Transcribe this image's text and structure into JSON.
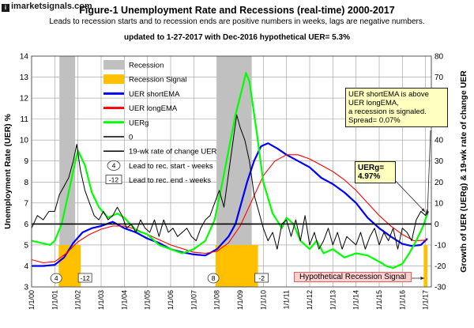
{
  "brand": "imarketsignals.com",
  "title": "Figure-1     Unemployment Rate and Recessions (real-time) 2000-2017",
  "subtitle": "Leads to recession starts and to recession ends are positive numbers in weeks, lags are negative numbers.",
  "update_note": "updated to 1-27-2017 with Dec-2016 hypothetical UER= 5.3%",
  "callouts": {
    "spread_lines": [
      "UER shortEMA  is above",
      "UER longEMA,",
      "a recession is signaled.",
      "Spread= 0.07%"
    ],
    "uerg_lines": [
      "UERg=",
      "4.97%"
    ],
    "hypothetical": "Hypothetical Recession Signal"
  },
  "chart_data": {
    "type": "line",
    "title": "Unemployment Rate and Recessions (real-time) 2000-2017",
    "ylabel_left": "Unemployment Rate (UER) %",
    "ylabel_right": "Growth of UER (UERg) & 19-wk rate of change UER",
    "ylim_left": [
      3,
      14
    ],
    "ylim_right": [
      -30,
      80
    ],
    "yticks_left": [
      3,
      4,
      5,
      6,
      7,
      8,
      9,
      10,
      11,
      12,
      13,
      14
    ],
    "yticks_right": [
      -30,
      -20,
      -10,
      0,
      10,
      20,
      30,
      40,
      50,
      60,
      70,
      80
    ],
    "xlim": [
      2000.0,
      2017.25
    ],
    "xtick_labels": [
      "1/1/00",
      "1/1/01",
      "1/1/02",
      "1/1/03",
      "1/1/04",
      "1/1/05",
      "1/1/06",
      "1/1/07",
      "1/1/08",
      "1/1/09",
      "1/1/10",
      "1/1/11",
      "1/1/12",
      "1/1/13",
      "1/1/14",
      "1/1/15",
      "1/1/16",
      "1/1/17"
    ],
    "grid": true,
    "legend_position": "top-left",
    "legend": [
      {
        "label": "Recession",
        "kind": "box",
        "color": "#c0c0c0"
      },
      {
        "label": "Recession Signal",
        "kind": "box",
        "color": "#ffc000"
      },
      {
        "label": "UER shortEMA",
        "kind": "line",
        "color": "#0000ff"
      },
      {
        "label": "UER longEMA",
        "kind": "line",
        "color": "#ff0000"
      },
      {
        "label": "UERg",
        "kind": "line",
        "color": "#00ff00"
      },
      {
        "label": "0",
        "kind": "line",
        "color": "#000000"
      },
      {
        "label": "19-wk rate of change UER",
        "kind": "line",
        "color": "#000000"
      },
      {
        "label": "Lead to rec. start - weeks",
        "kind": "oval",
        "marker": "4"
      },
      {
        "label": "Lead to rec. end - weeks",
        "kind": "rect",
        "marker": "-12"
      }
    ],
    "recessions": [
      [
        2001.2,
        2001.88
      ],
      [
        2007.98,
        2009.5
      ]
    ],
    "recession_signals": [
      [
        2001.17,
        2002.12
      ],
      [
        2007.94,
        2009.77
      ],
      [
        2016.92,
        2017.08
      ]
    ],
    "recession_signal_level_right": -10,
    "start_markers": [
      {
        "x": 2001.2,
        "label": "4"
      },
      {
        "x": 2007.98,
        "label": "8"
      }
    ],
    "end_markers": [
      {
        "x": 2001.88,
        "label": "-12"
      },
      {
        "x": 2009.5,
        "label": "-2"
      }
    ],
    "series": [
      {
        "name": "UER shortEMA",
        "axis": "left",
        "color": "#0000ff",
        "width": 2.2,
        "x": [
          2000.0,
          2000.5,
          2001.0,
          2001.4,
          2001.8,
          2002.2,
          2002.6,
          2003.0,
          2003.5,
          2004.0,
          2004.5,
          2005.0,
          2005.5,
          2006.0,
          2006.5,
          2007.0,
          2007.5,
          2008.0,
          2008.5,
          2008.8,
          2009.0,
          2009.3,
          2009.6,
          2009.9,
          2010.2,
          2010.6,
          2011.0,
          2011.5,
          2012.0,
          2012.5,
          2013.0,
          2013.5,
          2014.0,
          2014.5,
          2015.0,
          2015.5,
          2016.0,
          2016.4,
          2016.8,
          2017.08
        ],
        "y": [
          4.0,
          4.0,
          4.05,
          4.4,
          5.1,
          5.6,
          5.8,
          5.9,
          6.1,
          5.8,
          5.6,
          5.3,
          5.1,
          4.8,
          4.65,
          4.55,
          4.5,
          4.8,
          5.4,
          6.0,
          6.8,
          8.0,
          9.0,
          9.7,
          9.85,
          9.6,
          9.3,
          9.0,
          8.7,
          8.2,
          7.9,
          7.5,
          7.0,
          6.3,
          5.8,
          5.4,
          5.05,
          4.95,
          5.0,
          5.3
        ]
      },
      {
        "name": "UER longEMA",
        "axis": "left",
        "color": "#ff0000",
        "width": 1.1,
        "x": [
          2000.0,
          2000.5,
          2001.0,
          2001.5,
          2002.0,
          2002.5,
          2003.0,
          2003.5,
          2004.0,
          2004.5,
          2005.0,
          2006.0,
          2007.0,
          2007.5,
          2008.0,
          2008.5,
          2009.0,
          2009.5,
          2010.0,
          2010.5,
          2011.0,
          2011.5,
          2012.0,
          2012.5,
          2013.0,
          2013.5,
          2014.0,
          2014.5,
          2015.0,
          2015.5,
          2016.0,
          2016.5,
          2017.08
        ],
        "y": [
          4.3,
          4.15,
          4.2,
          4.6,
          5.15,
          5.5,
          5.75,
          5.9,
          5.9,
          5.75,
          5.5,
          5.0,
          4.65,
          4.6,
          4.7,
          5.1,
          5.9,
          7.1,
          8.3,
          9.0,
          9.3,
          9.3,
          9.1,
          8.8,
          8.5,
          8.1,
          7.6,
          7.0,
          6.4,
          5.9,
          5.5,
          5.2,
          5.23
        ]
      },
      {
        "name": "UERg",
        "axis": "right",
        "color": "#00ff00",
        "width": 2.2,
        "x": [
          2000.0,
          2000.4,
          2000.8,
          2001.0,
          2001.3,
          2001.6,
          2001.85,
          2002.0,
          2002.3,
          2002.6,
          2002.9,
          2003.3,
          2003.7,
          2004.0,
          2004.5,
          2005.0,
          2005.5,
          2006.0,
          2006.5,
          2007.0,
          2007.5,
          2007.9,
          2008.2,
          2008.5,
          2008.8,
          2009.1,
          2009.25,
          2009.4,
          2009.7,
          2010.0,
          2010.4,
          2010.8,
          2011.0,
          2011.3,
          2011.6,
          2012.0,
          2012.3,
          2012.6,
          2013.0,
          2013.5,
          2014.0,
          2014.5,
          2015.0,
          2015.3,
          2015.6,
          2016.0,
          2016.3,
          2016.6,
          2016.9,
          2017.08
        ],
        "y": [
          -8,
          -9,
          -10,
          -8,
          0,
          15,
          28,
          35,
          28,
          15,
          8,
          3,
          5,
          3,
          -3,
          -5,
          -10,
          -12,
          -14,
          -12,
          -8,
          2,
          18,
          35,
          52,
          65,
          72,
          68,
          45,
          20,
          5,
          -2,
          3,
          0,
          -8,
          -12,
          -8,
          -14,
          -12,
          -16,
          -14,
          -15,
          -18,
          -20,
          -21,
          -19,
          -14,
          -8,
          -1,
          5
        ]
      },
      {
        "name": "19-wk rate of change UER",
        "axis": "right",
        "color": "#000000",
        "width": 1.0,
        "x": [
          2000.0,
          2000.25,
          2000.5,
          2000.75,
          2001.0,
          2001.2,
          2001.4,
          2001.6,
          2001.8,
          2001.95,
          2002.1,
          2002.3,
          2002.5,
          2002.7,
          2002.9,
          2003.1,
          2003.3,
          2003.5,
          2003.7,
          2003.9,
          2004.1,
          2004.3,
          2004.5,
          2004.7,
          2004.9,
          2005.1,
          2005.3,
          2005.5,
          2005.7,
          2005.9,
          2006.1,
          2006.3,
          2006.5,
          2006.7,
          2006.9,
          2007.1,
          2007.3,
          2007.5,
          2007.7,
          2007.9,
          2008.1,
          2008.3,
          2008.5,
          2008.7,
          2008.85,
          2009.0,
          2009.2,
          2009.4,
          2009.6,
          2009.8,
          2010.0,
          2010.2,
          2010.4,
          2010.6,
          2010.8,
          2011.0,
          2011.2,
          2011.4,
          2011.6,
          2011.8,
          2012.0,
          2012.2,
          2012.4,
          2012.6,
          2012.8,
          2013.0,
          2013.2,
          2013.4,
          2013.6,
          2013.8,
          2014.0,
          2014.2,
          2014.4,
          2014.6,
          2014.8,
          2015.0,
          2015.2,
          2015.4,
          2015.6,
          2015.8,
          2016.0,
          2016.2,
          2016.4,
          2016.6,
          2016.8,
          2017.0,
          2017.08
        ],
        "y": [
          -2,
          4,
          2,
          6,
          6,
          14,
          18,
          22,
          30,
          38,
          26,
          16,
          10,
          4,
          2,
          6,
          2,
          4,
          8,
          4,
          -2,
          0,
          -4,
          2,
          -2,
          -4,
          2,
          -6,
          2,
          -4,
          -2,
          -6,
          -4,
          -2,
          -6,
          -8,
          -2,
          2,
          4,
          10,
          16,
          8,
          24,
          40,
          52,
          46,
          40,
          30,
          14,
          6,
          -2,
          -8,
          -4,
          -12,
          0,
          2,
          -6,
          2,
          -8,
          4,
          -10,
          -4,
          -12,
          -8,
          -2,
          -10,
          -4,
          -12,
          -6,
          -8,
          -10,
          -4,
          -12,
          -6,
          -2,
          -10,
          -4,
          -8,
          -2,
          -12,
          -2,
          -4,
          -8,
          2,
          6,
          4,
          7
        ]
      },
      {
        "name": "0",
        "axis": "right",
        "color": "#000000",
        "width": 1.6,
        "x": [
          2000.0,
          2017.25
        ],
        "y": [
          0,
          0
        ]
      }
    ]
  }
}
